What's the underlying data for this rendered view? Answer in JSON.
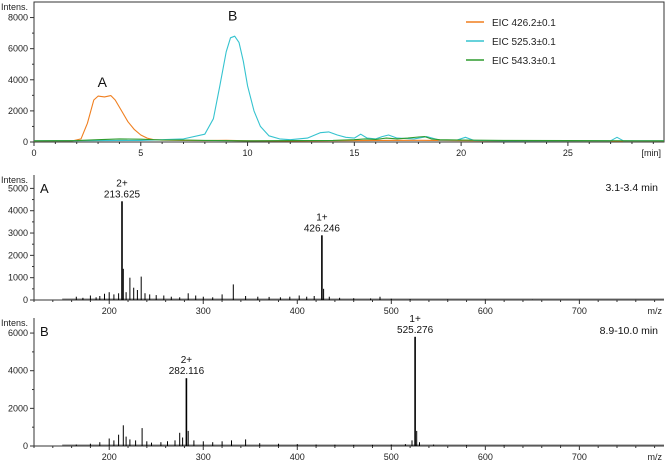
{
  "colors": {
    "trace_426": "#f07f1f",
    "trace_525": "#35c3cf",
    "trace_543": "#2e9b2e",
    "spectrum": "#000000",
    "axis": "#333333"
  },
  "chart_data": [
    {
      "id": "chromatogram",
      "type": "line",
      "xlabel": "[min]",
      "ylabel": "Intens.",
      "xlim": [
        0,
        29.5
      ],
      "ylim": [
        0,
        9000
      ],
      "xticks": [
        0,
        5,
        10,
        15,
        20,
        25
      ],
      "yticks": [
        0,
        2000,
        4000,
        6000,
        8000
      ],
      "legend": "top-right",
      "grid": false,
      "peak_labels": [
        {
          "text": "A",
          "x": 3.2,
          "y": 3550
        },
        {
          "text": "B",
          "x": 9.3,
          "y": 7800
        }
      ],
      "series": [
        {
          "name": "EIC 426.2±0.1",
          "color_key": "trace_426",
          "x": [
            0,
            1.8,
            2.2,
            2.5,
            2.8,
            3.0,
            3.3,
            3.6,
            3.8,
            4.1,
            4.4,
            4.7,
            5.0,
            5.3,
            5.6,
            6.0,
            7.0,
            8.0,
            9.0,
            10.0,
            12.0,
            15.0,
            18.0,
            22.0,
            26.0,
            29.5
          ],
          "y": [
            60,
            70,
            200,
            1200,
            2700,
            2950,
            2900,
            2980,
            2700,
            2000,
            1300,
            800,
            450,
            250,
            150,
            120,
            100,
            90,
            110,
            80,
            70,
            90,
            110,
            70,
            60,
            60
          ]
        },
        {
          "name": "EIC 525.3±0.1",
          "color_key": "trace_525",
          "x": [
            0,
            5.0,
            7.0,
            8.0,
            8.4,
            8.7,
            9.0,
            9.2,
            9.4,
            9.6,
            9.8,
            10.0,
            10.3,
            10.6,
            11.0,
            11.5,
            12.0,
            12.8,
            13.4,
            13.8,
            14.2,
            14.6,
            15.0,
            15.3,
            15.6,
            16.0,
            16.3,
            16.6,
            17.0,
            17.8,
            18.4,
            19.0,
            19.8,
            20.2,
            20.6,
            22.0,
            25.0,
            27.0,
            27.3,
            27.6,
            29.5
          ],
          "y": [
            80,
            100,
            200,
            500,
            1500,
            3600,
            5800,
            6700,
            6800,
            6400,
            5200,
            3600,
            2000,
            1000,
            400,
            200,
            150,
            250,
            600,
            650,
            450,
            300,
            250,
            500,
            250,
            200,
            350,
            450,
            250,
            200,
            350,
            120,
            120,
            300,
            100,
            80,
            80,
            80,
            300,
            80,
            80
          ]
        },
        {
          "name": "EIC 543.3±0.1",
          "color_key": "trace_543",
          "x": [
            0,
            2.0,
            3.0,
            4.0,
            5.0,
            6.0,
            7.0,
            8.0,
            10.0,
            12.0,
            14.0,
            15.0,
            15.5,
            16.0,
            16.5,
            17.0,
            17.5,
            18.0,
            18.3,
            18.6,
            19.0,
            20.0,
            22.0,
            25.0,
            29.5
          ],
          "y": [
            80,
            90,
            150,
            200,
            180,
            130,
            120,
            100,
            80,
            90,
            100,
            150,
            200,
            170,
            250,
            200,
            250,
            320,
            350,
            200,
            150,
            120,
            100,
            90,
            80
          ]
        }
      ]
    },
    {
      "id": "spectrum_A",
      "type": "bar",
      "panel_label": "A",
      "range_label": "3.1-3.4 min",
      "xlabel": "m/z",
      "ylabel": "Intens.",
      "xlim": [
        120,
        790
      ],
      "ylim": [
        0,
        5600
      ],
      "xticks": [
        200,
        300,
        400,
        500,
        600,
        700
      ],
      "yticks": [
        0,
        1000,
        2000,
        3000,
        4000,
        5000
      ],
      "grid": false,
      "peak_annotations": [
        {
          "charge": "2+",
          "mz": "213.625",
          "x": 213.6,
          "y": 4420
        },
        {
          "charge": "1+",
          "mz": "426.246",
          "x": 426.2,
          "y": 2900
        }
      ],
      "peaks": {
        "x": [
          165,
          172,
          180,
          186,
          190,
          195,
          200,
          205,
          210,
          213.6,
          215,
          218,
          222,
          226,
          230,
          234,
          238,
          243,
          250,
          258,
          266,
          275,
          284,
          292,
          300,
          310,
          320,
          332,
          345,
          358,
          370,
          382,
          392,
          402,
          410,
          418,
          426.2,
          428,
          434,
          445,
          460,
          478,
          488,
          500,
          520,
          560,
          600,
          650,
          700,
          760
        ],
        "y": [
          150,
          100,
          200,
          120,
          180,
          280,
          350,
          250,
          300,
          4420,
          1400,
          350,
          1000,
          550,
          450,
          1050,
          300,
          250,
          220,
          200,
          150,
          120,
          300,
          200,
          150,
          120,
          250,
          700,
          180,
          150,
          140,
          120,
          150,
          200,
          150,
          180,
          2900,
          500,
          150,
          100,
          80,
          70,
          150,
          60,
          40,
          30,
          25,
          20,
          15,
          10
        ]
      }
    },
    {
      "id": "spectrum_B",
      "type": "bar",
      "panel_label": "B",
      "range_label": "8.9-10.0 min",
      "xlabel": "m/z",
      "ylabel": "Intens.",
      "xlim": [
        120,
        790
      ],
      "ylim": [
        0,
        6800
      ],
      "xticks": [
        200,
        300,
        400,
        500,
        600,
        700
      ],
      "yticks": [
        0,
        2000,
        4000,
        6000
      ],
      "grid": false,
      "peak_annotations": [
        {
          "charge": "2+",
          "mz": "282.116",
          "x": 282.1,
          "y": 3600
        },
        {
          "charge": "1+",
          "mz": "525.276",
          "x": 525.3,
          "y": 5800
        }
      ],
      "peaks": {
        "x": [
          165,
          180,
          190,
          200,
          205,
          210,
          215,
          218,
          222,
          228,
          235,
          240,
          245,
          255,
          262,
          270,
          275,
          278,
          282.1,
          284,
          290,
          300,
          310,
          320,
          330,
          345,
          360,
          380,
          400,
          420,
          440,
          460,
          480,
          500,
          515,
          522,
          525.3,
          527,
          530,
          545,
          580,
          620,
          680,
          740
        ],
        "y": [
          80,
          120,
          200,
          400,
          300,
          600,
          1100,
          500,
          350,
          300,
          950,
          250,
          180,
          200,
          250,
          300,
          700,
          450,
          3600,
          800,
          300,
          250,
          200,
          250,
          300,
          350,
          150,
          120,
          100,
          80,
          70,
          60,
          60,
          80,
          100,
          300,
          5800,
          800,
          200,
          80,
          50,
          40,
          30,
          20
        ]
      }
    }
  ]
}
